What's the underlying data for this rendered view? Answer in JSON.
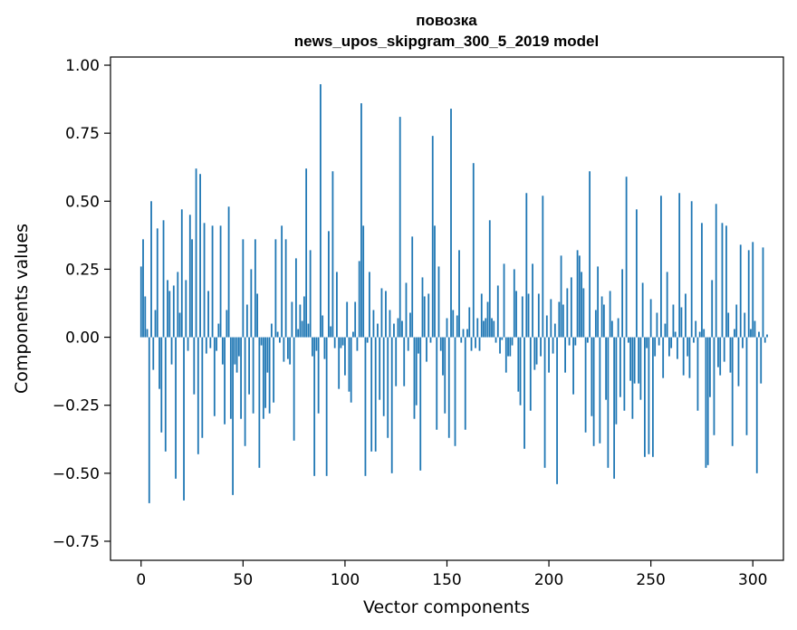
{
  "chart_data": {
    "type": "bar",
    "title": "повозка",
    "subtitle": "news_upos_skipgram_300_5_2019 model",
    "xlabel": "Vector components",
    "ylabel": "Components values",
    "xlim": [
      -15,
      315
    ],
    "ylim": [
      -0.82,
      1.03
    ],
    "xticks": [
      0,
      50,
      100,
      150,
      200,
      250,
      300
    ],
    "xtick_labels": [
      "0",
      "50",
      "100",
      "150",
      "200",
      "250",
      "300"
    ],
    "yticks": [
      -0.75,
      -0.5,
      -0.25,
      0.0,
      0.25,
      0.5,
      0.75,
      1.0
    ],
    "ytick_labels": [
      "−0.75",
      "−0.50",
      "−0.25",
      "0.00",
      "0.25",
      "0.50",
      "0.75",
      "1.00"
    ],
    "grid": false,
    "bar_color": "#1f77b4",
    "values": [
      0.26,
      0.36,
      0.15,
      0.03,
      -0.61,
      0.5,
      -0.12,
      0.1,
      0.4,
      -0.19,
      -0.35,
      0.43,
      -0.42,
      0.21,
      0.17,
      -0.1,
      0.19,
      -0.52,
      0.24,
      0.09,
      0.47,
      -0.6,
      0.21,
      -0.05,
      0.45,
      0.36,
      -0.21,
      0.62,
      -0.43,
      0.6,
      -0.37,
      0.42,
      -0.06,
      0.17,
      -0.04,
      0.41,
      -0.29,
      -0.05,
      0.05,
      0.41,
      -0.1,
      -0.32,
      0.1,
      0.48,
      -0.3,
      -0.58,
      -0.1,
      -0.13,
      -0.07,
      -0.3,
      0.36,
      -0.4,
      0.12,
      -0.21,
      0.25,
      -0.28,
      0.36,
      0.16,
      -0.48,
      -0.03,
      -0.3,
      -0.26,
      -0.13,
      -0.28,
      0.05,
      -0.24,
      0.36,
      0.02,
      -0.02,
      0.41,
      -0.09,
      0.36,
      -0.08,
      -0.1,
      0.13,
      -0.38,
      0.29,
      0.03,
      0.12,
      0.06,
      0.15,
      0.62,
      0.05,
      0.32,
      -0.07,
      -0.51,
      -0.05,
      -0.28,
      0.93,
      0.08,
      -0.08,
      -0.51,
      0.39,
      0.04,
      0.61,
      -0.04,
      0.24,
      -0.19,
      -0.04,
      -0.03,
      -0.14,
      0.13,
      -0.2,
      -0.24,
      0.02,
      0.13,
      -0.05,
      0.28,
      0.86,
      0.41,
      -0.51,
      -0.02,
      0.24,
      -0.42,
      0.1,
      -0.42,
      0.05,
      -0.23,
      0.18,
      -0.29,
      0.17,
      -0.37,
      0.1,
      -0.5,
      0.05,
      -0.18,
      0.07,
      0.81,
      0.06,
      -0.18,
      0.2,
      -0.05,
      0.09,
      0.37,
      -0.3,
      -0.25,
      -0.06,
      -0.49,
      0.22,
      0.15,
      -0.09,
      0.16,
      -0.02,
      0.74,
      0.41,
      -0.34,
      0.26,
      -0.05,
      -0.14,
      -0.28,
      0.07,
      -0.37,
      0.84,
      0.1,
      -0.4,
      0.08,
      0.32,
      -0.02,
      0.03,
      -0.34,
      0.03,
      0.11,
      -0.05,
      0.64,
      -0.04,
      0.07,
      -0.05,
      0.16,
      0.06,
      0.07,
      0.13,
      0.43,
      0.07,
      0.06,
      -0.02,
      0.19,
      -0.06,
      -0.01,
      0.27,
      -0.13,
      -0.07,
      -0.07,
      -0.03,
      0.25,
      0.17,
      -0.2,
      -0.25,
      0.15,
      -0.41,
      0.53,
      0.16,
      -0.27,
      0.27,
      -0.12,
      -0.1,
      0.16,
      -0.07,
      0.52,
      -0.48,
      0.08,
      -0.13,
      0.14,
      -0.06,
      0.05,
      -0.54,
      0.13,
      0.3,
      0.12,
      -0.13,
      0.18,
      -0.03,
      0.22,
      -0.21,
      -0.03,
      0.32,
      0.3,
      0.24,
      0.18,
      -0.35,
      -0.02,
      0.61,
      -0.29,
      -0.4,
      0.1,
      0.26,
      -0.39,
      0.15,
      0.12,
      -0.23,
      -0.48,
      0.17,
      0.06,
      -0.52,
      -0.32,
      0.07,
      -0.22,
      0.25,
      -0.27,
      0.59,
      -0.02,
      -0.16,
      -0.3,
      -0.17,
      0.47,
      -0.17,
      -0.23,
      0.2,
      -0.44,
      -0.04,
      -0.43,
      0.14,
      -0.44,
      -0.07,
      0.09,
      -0.03,
      0.52,
      -0.15,
      0.05,
      0.24,
      -0.07,
      -0.04,
      0.12,
      0.02,
      -0.08,
      0.53,
      0.11,
      -0.14,
      0.16,
      -0.07,
      -0.15,
      0.5,
      -0.02,
      0.06,
      -0.27,
      0.02,
      0.42,
      0.03,
      -0.48,
      -0.47,
      -0.22,
      0.21,
      -0.36,
      0.49,
      -0.11,
      -0.14,
      0.42,
      -0.09,
      0.41,
      0.09,
      -0.13,
      -0.4,
      0.03,
      0.12,
      -0.18,
      0.34,
      -0.04,
      0.09,
      -0.36,
      0.32,
      0.03,
      0.35,
      0.06,
      -0.5,
      0.02,
      -0.17,
      0.33,
      -0.02,
      0.01
    ]
  }
}
